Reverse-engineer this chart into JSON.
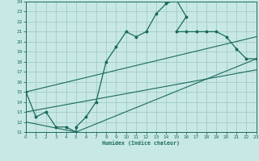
{
  "xlabel": "Humidex (Indice chaleur)",
  "bg_color": "#c8e8e5",
  "line_color": "#1a6b5a",
  "grid_color": "#a0ccc8",
  "xlim": [
    0,
    23
  ],
  "ylim": [
    11,
    24
  ],
  "xticks": [
    0,
    1,
    2,
    3,
    4,
    5,
    6,
    7,
    8,
    9,
    10,
    11,
    12,
    13,
    14,
    15,
    16,
    17,
    18,
    19,
    20,
    21,
    22,
    23
  ],
  "yticks": [
    11,
    12,
    13,
    14,
    15,
    16,
    17,
    18,
    19,
    20,
    21,
    22,
    23,
    24
  ],
  "main_x": [
    0,
    1,
    2,
    3,
    4,
    5,
    5,
    6,
    7,
    8,
    9,
    10,
    11,
    12,
    13,
    14,
    15,
    16,
    15,
    16,
    17,
    18,
    19,
    20,
    21,
    22,
    23
  ],
  "main_y": [
    15,
    12.5,
    13,
    11.5,
    11.5,
    11,
    11.5,
    12.5,
    14,
    18,
    19.5,
    21,
    20.5,
    21,
    22.8,
    23.8,
    24.2,
    22.5,
    21,
    21,
    21,
    21,
    21,
    20.5,
    19.3,
    18.3,
    18.3
  ],
  "line1_x": [
    0,
    23
  ],
  "line1_y": [
    13,
    17.2
  ],
  "line2_x": [
    0,
    23
  ],
  "line2_y": [
    15,
    20.5
  ],
  "line3_x": [
    0,
    5,
    23
  ],
  "line3_y": [
    12,
    11,
    18.3
  ]
}
